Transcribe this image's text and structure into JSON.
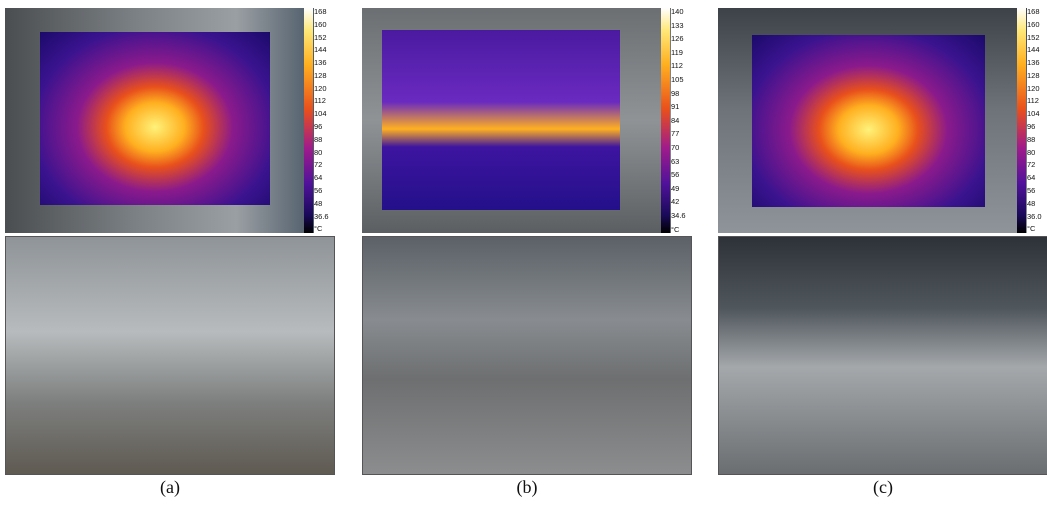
{
  "panels": [
    {
      "caption": "(a)",
      "colorbar": {
        "labels": [
          "168",
          "160",
          "152",
          "144",
          "136",
          "128",
          "120",
          "112",
          "104",
          "96",
          "88",
          "80",
          "72",
          "64",
          "56",
          "48",
          "36.6"
        ],
        "unit": "°C"
      }
    },
    {
      "caption": "(b)",
      "colorbar": {
        "labels": [
          "140",
          "133",
          "126",
          "119",
          "112",
          "105",
          "98",
          "91",
          "84",
          "77",
          "70",
          "63",
          "56",
          "49",
          "42",
          "34.6"
        ],
        "unit": "°C"
      }
    },
    {
      "caption": "(c)",
      "colorbar": {
        "labels": [
          "168",
          "160",
          "152",
          "144",
          "136",
          "128",
          "120",
          "112",
          "104",
          "96",
          "88",
          "80",
          "72",
          "64",
          "56",
          "48",
          "36.0"
        ],
        "unit": "°C"
      }
    }
  ]
}
